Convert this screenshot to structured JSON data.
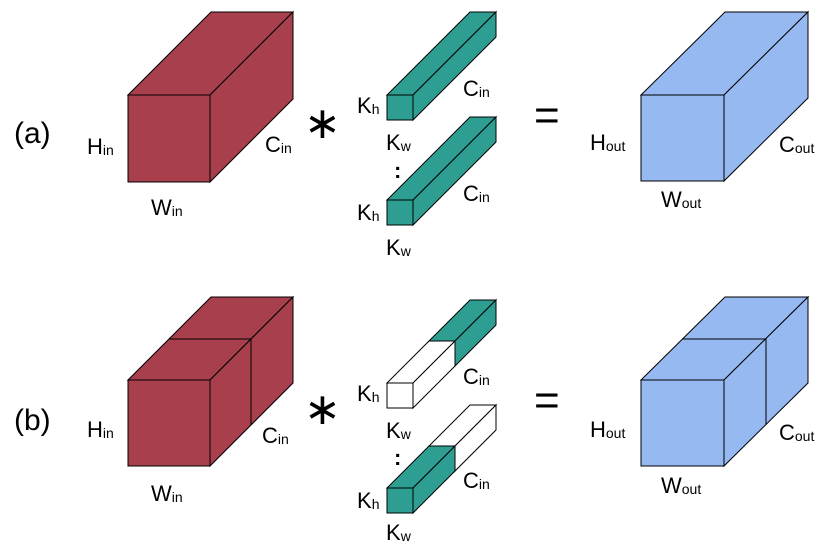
{
  "colors": {
    "input_tensor": "#a83f4d",
    "kernel": "#2e9e92",
    "output_tensor": "#95b9f0",
    "empty": "#ffffff",
    "stroke": "#000000"
  },
  "row_a": {
    "label": "(a)",
    "input": {
      "h": {
        "main": "H",
        "sub": "in"
      },
      "w": {
        "main": "W",
        "sub": "in"
      },
      "c": {
        "main": "C",
        "sub": "in"
      }
    },
    "operator": "∗",
    "kernel_top": {
      "kh": {
        "main": "K",
        "sub": "h"
      },
      "kw": {
        "main": "K",
        "sub": "w"
      },
      "c": {
        "main": "C",
        "sub": "in"
      }
    },
    "ellipsis": ":",
    "kernel_bottom": {
      "kh": {
        "main": "K",
        "sub": "h"
      },
      "kw": {
        "main": "K",
        "sub": "w"
      },
      "c": {
        "main": "C",
        "sub": "in"
      }
    },
    "equals": "=",
    "output": {
      "h": {
        "main": "H",
        "sub": "out"
      },
      "w": {
        "main": "W",
        "sub": "out"
      },
      "c": {
        "main": "C",
        "sub": "out"
      }
    }
  },
  "row_b": {
    "label": "(b)",
    "input": {
      "h": {
        "main": "H",
        "sub": "in"
      },
      "w": {
        "main": "W",
        "sub": "in"
      },
      "c": {
        "main": "C",
        "sub": "in"
      }
    },
    "operator": "∗",
    "kernel_top": {
      "kh": {
        "main": "K",
        "sub": "h"
      },
      "kw": {
        "main": "K",
        "sub": "w"
      },
      "c": {
        "main": "C",
        "sub": "in"
      }
    },
    "ellipsis": ":",
    "kernel_bottom": {
      "kh": {
        "main": "K",
        "sub": "h"
      },
      "kw": {
        "main": "K",
        "sub": "w"
      },
      "c": {
        "main": "C",
        "sub": "in"
      }
    },
    "equals": "=",
    "output": {
      "h": {
        "main": "H",
        "sub": "out"
      },
      "w": {
        "main": "W",
        "sub": "out"
      },
      "c": {
        "main": "C",
        "sub": "out"
      }
    }
  }
}
